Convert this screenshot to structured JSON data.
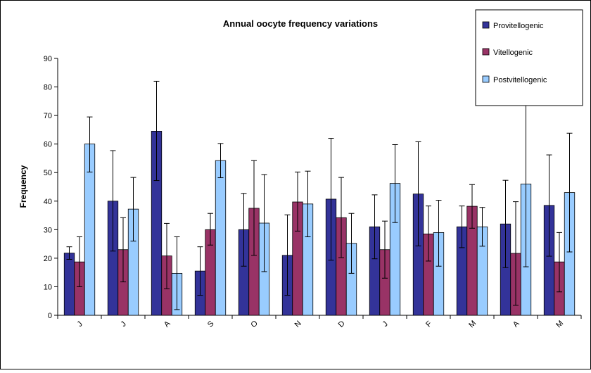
{
  "chart_data": {
    "type": "bar",
    "title": "Annual oocyte frequency variations",
    "xlabel": "",
    "ylabel": "Frequency",
    "ylim": [
      0,
      90
    ],
    "yticks": [
      0,
      10,
      20,
      30,
      40,
      50,
      60,
      70,
      80,
      90
    ],
    "grid": false,
    "legend_position": "top-right",
    "categories": [
      "J",
      "J",
      "A",
      "S",
      "O",
      "N",
      "D",
      "J",
      "F",
      "M",
      "A",
      "M"
    ],
    "series": [
      {
        "name": "Provitellogenic",
        "color": "#333399",
        "values": [
          21.8,
          40.0,
          64.5,
          15.5,
          30.0,
          21.0,
          40.7,
          31.0,
          42.5,
          31.0,
          32.0,
          38.5
        ],
        "error_low": [
          19.6,
          22.5,
          47.2,
          7.0,
          17.2,
          7.0,
          19.3,
          19.8,
          24.3,
          23.7,
          16.7,
          20.7
        ],
        "error_high": [
          24.0,
          57.7,
          82.0,
          24.0,
          42.7,
          35.2,
          62.0,
          42.2,
          60.8,
          38.3,
          47.3,
          56.2
        ]
      },
      {
        "name": "Vitellogenic",
        "color": "#993366",
        "values": [
          18.7,
          23.0,
          20.8,
          30.0,
          37.5,
          39.7,
          34.2,
          23.0,
          28.5,
          38.2,
          21.7,
          18.7
        ],
        "error_low": [
          10.0,
          11.7,
          9.3,
          24.6,
          21.0,
          29.5,
          20.2,
          13.0,
          19.0,
          30.5,
          3.5,
          8.2
        ],
        "error_high": [
          27.5,
          34.2,
          32.2,
          35.7,
          54.2,
          50.2,
          48.3,
          33.0,
          38.3,
          45.8,
          39.8,
          29.0
        ]
      },
      {
        "name": "Postvitellogenic",
        "color": "#99CCFF",
        "values": [
          60.0,
          37.2,
          14.7,
          54.2,
          32.3,
          39.0,
          25.2,
          46.2,
          29.0,
          31.0,
          46.0,
          43.0
        ],
        "error_low": [
          50.2,
          26.0,
          2.0,
          48.2,
          15.3,
          27.5,
          14.7,
          32.5,
          17.2,
          24.2,
          17.0,
          22.2
        ],
        "error_high": [
          69.5,
          48.3,
          27.5,
          60.2,
          49.3,
          50.5,
          35.7,
          59.8,
          40.3,
          37.8,
          75.0,
          63.8
        ]
      }
    ]
  }
}
